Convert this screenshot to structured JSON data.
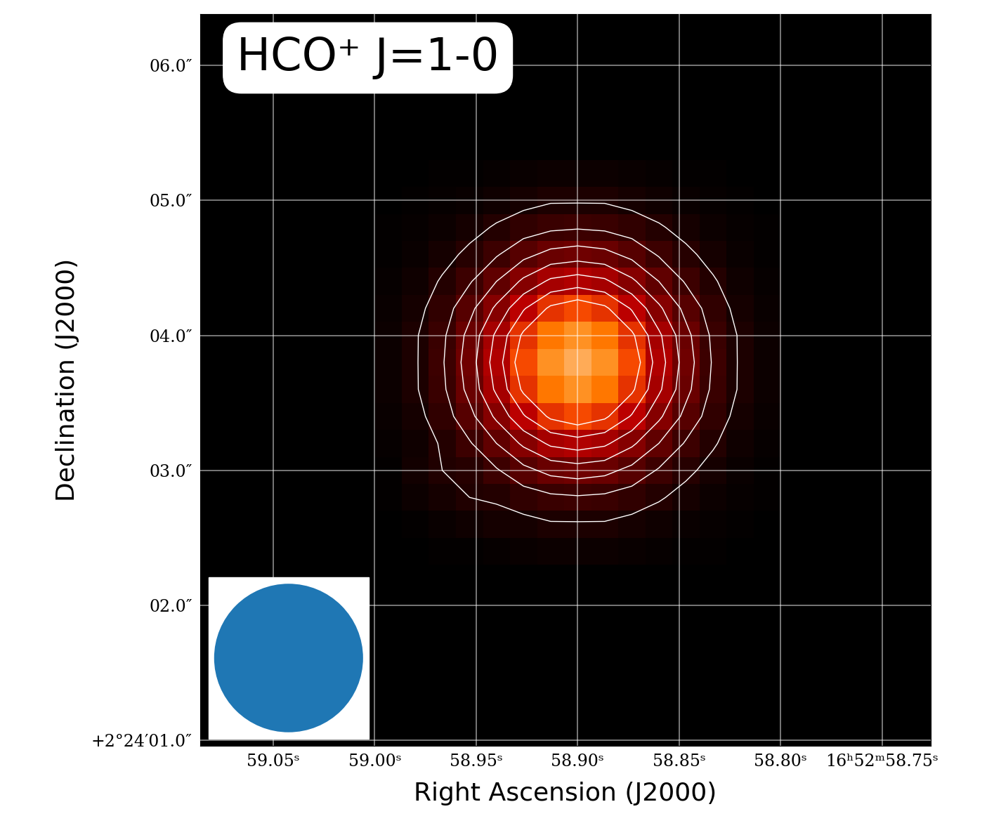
{
  "chart_data": {
    "type": "heatmap",
    "title": "HCO⁺ J=1-0",
    "x_label": "Right Ascension (J2000)",
    "y_label": "Declination (J2000)",
    "xlim": [
      59.086,
      58.726
    ],
    "ylim": [
      0.96,
      6.38
    ],
    "xticks": [
      {
        "value": 59.05,
        "label": "59.05ˢ"
      },
      {
        "value": 59.0,
        "label": "59.00ˢ"
      },
      {
        "value": 58.95,
        "label": "58.95ˢ"
      },
      {
        "value": 58.9,
        "label": "58.90ˢ"
      },
      {
        "value": 58.85,
        "label": "58.85ˢ"
      },
      {
        "value": 58.8,
        "label": "58.80ˢ"
      },
      {
        "value": 58.75,
        "label": "16ʰ52ᵐ58.75ˢ"
      }
    ],
    "yticks": [
      {
        "value": 1.0,
        "label": "+2°24′01.0″"
      },
      {
        "value": 2.0,
        "label": "02.0″"
      },
      {
        "value": 3.0,
        "label": "03.0″"
      },
      {
        "value": 4.0,
        "label": "04.0″"
      },
      {
        "value": 5.0,
        "label": "05.0″"
      },
      {
        "value": 6.0,
        "label": "06.0″"
      }
    ],
    "grid": true,
    "x": [
      58.9933,
      58.98,
      58.9667,
      58.9533,
      58.94,
      58.9267,
      58.9133,
      58.9,
      58.8867,
      58.8733,
      58.86,
      58.8467,
      58.8333,
      58.82,
      58.8067
    ],
    "y": [
      2.4,
      2.6,
      2.8,
      3.0,
      3.2,
      3.4,
      3.6,
      3.8,
      4.0,
      4.2,
      4.4,
      4.6,
      4.8,
      5.0,
      5.2
    ],
    "cells": [
      [
        0.0,
        0.0,
        0.01,
        0.01,
        0.02,
        0.03,
        0.04,
        0.04,
        0.04,
        0.03,
        0.02,
        0.01,
        0.01,
        0.0,
        0.0
      ],
      [
        0.0,
        0.01,
        0.03,
        0.05,
        0.07,
        0.07,
        0.09,
        0.09,
        0.09,
        0.07,
        0.05,
        0.03,
        0.02,
        0.01,
        0.0
      ],
      [
        0.01,
        0.04,
        0.07,
        0.1,
        0.11,
        0.15,
        0.18,
        0.19,
        0.18,
        0.15,
        0.11,
        0.07,
        0.04,
        0.02,
        0.01
      ],
      [
        0.01,
        0.06,
        0.1,
        0.12,
        0.19,
        0.27,
        0.33,
        0.35,
        0.33,
        0.27,
        0.19,
        0.12,
        0.07,
        0.03,
        0.01
      ],
      [
        0.02,
        0.05,
        0.11,
        0.19,
        0.3,
        0.42,
        0.52,
        0.55,
        0.52,
        0.42,
        0.3,
        0.19,
        0.11,
        0.05,
        0.02
      ],
      [
        0.03,
        0.07,
        0.15,
        0.27,
        0.42,
        0.59,
        0.72,
        0.77,
        0.72,
        0.59,
        0.42,
        0.27,
        0.15,
        0.07,
        0.03
      ],
      [
        0.04,
        0.09,
        0.18,
        0.33,
        0.52,
        0.72,
        0.88,
        0.94,
        0.88,
        0.72,
        0.52,
        0.33,
        0.18,
        0.09,
        0.04
      ],
      [
        0.04,
        0.09,
        0.19,
        0.35,
        0.55,
        0.77,
        0.94,
        1.0,
        0.94,
        0.77,
        0.55,
        0.35,
        0.19,
        0.09,
        0.04
      ],
      [
        0.04,
        0.09,
        0.18,
        0.33,
        0.52,
        0.72,
        0.88,
        0.94,
        0.88,
        0.72,
        0.52,
        0.33,
        0.18,
        0.09,
        0.04
      ],
      [
        0.03,
        0.07,
        0.15,
        0.27,
        0.42,
        0.59,
        0.72,
        0.77,
        0.72,
        0.59,
        0.42,
        0.27,
        0.15,
        0.07,
        0.03
      ],
      [
        0.02,
        0.05,
        0.11,
        0.19,
        0.3,
        0.42,
        0.52,
        0.55,
        0.52,
        0.42,
        0.3,
        0.19,
        0.11,
        0.05,
        0.02
      ],
      [
        0.01,
        0.03,
        0.07,
        0.12,
        0.19,
        0.27,
        0.33,
        0.35,
        0.33,
        0.27,
        0.19,
        0.12,
        0.07,
        0.03,
        0.01
      ],
      [
        0.01,
        0.02,
        0.04,
        0.07,
        0.11,
        0.15,
        0.18,
        0.19,
        0.18,
        0.15,
        0.11,
        0.07,
        0.04,
        0.02,
        0.01
      ],
      [
        0.0,
        0.01,
        0.02,
        0.03,
        0.05,
        0.07,
        0.09,
        0.09,
        0.09,
        0.07,
        0.05,
        0.03,
        0.02,
        0.01,
        0.0
      ],
      [
        0.0,
        0.0,
        0.01,
        0.01,
        0.02,
        0.03,
        0.04,
        0.04,
        0.04,
        0.03,
        0.02,
        0.01,
        0.01,
        0.0,
        0.0
      ]
    ],
    "color_range": [
      0,
      1.2
    ],
    "contour_levels": [
      0.1,
      0.2,
      0.3,
      0.4,
      0.5,
      0.6,
      0.7
    ],
    "beam_diameter": 1.1
  }
}
